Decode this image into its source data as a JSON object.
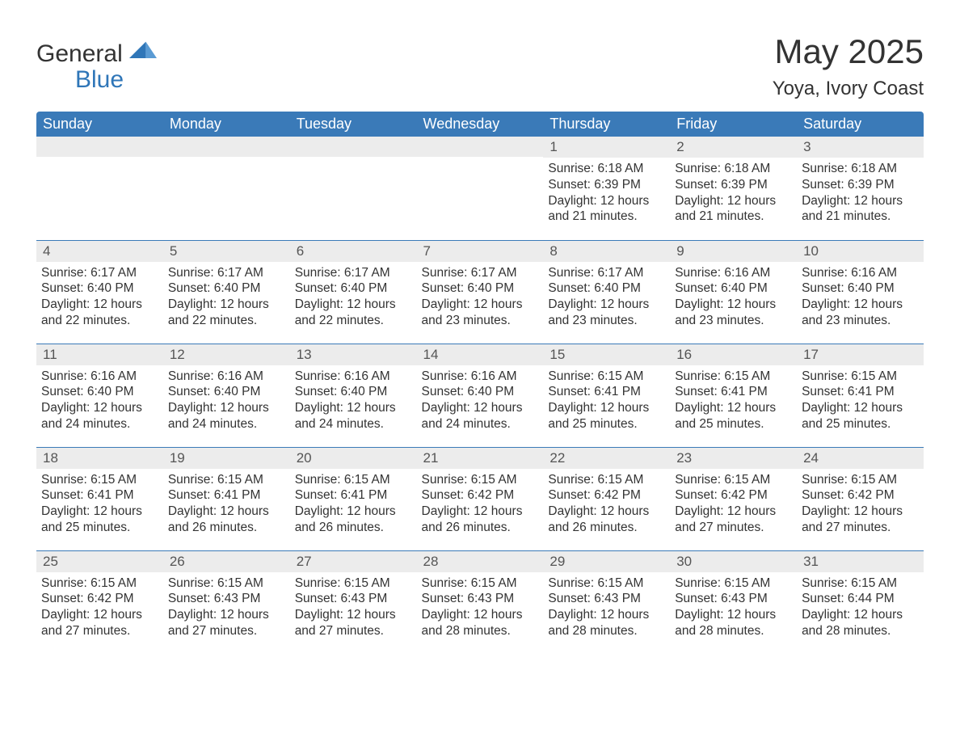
{
  "logo": {
    "word1": "General",
    "word2": "Blue",
    "triangle_color": "#2f76b8"
  },
  "title": "May 2025",
  "location": "Yoya, Ivory Coast",
  "colors": {
    "header_bg": "#3a7ab8",
    "header_text": "#ffffff",
    "daynum_bg": "#ececec",
    "row_divider": "#3a7ab8",
    "body_text": "#333333"
  },
  "weekdays": [
    "Sunday",
    "Monday",
    "Tuesday",
    "Wednesday",
    "Thursday",
    "Friday",
    "Saturday"
  ],
  "labels": {
    "sunrise": "Sunrise:",
    "sunset": "Sunset:",
    "daylight_prefix": "Daylight:"
  },
  "weeks": [
    [
      null,
      null,
      null,
      null,
      {
        "d": "1",
        "sr": "6:18 AM",
        "ss": "6:39 PM",
        "dl": "12 hours and 21 minutes."
      },
      {
        "d": "2",
        "sr": "6:18 AM",
        "ss": "6:39 PM",
        "dl": "12 hours and 21 minutes."
      },
      {
        "d": "3",
        "sr": "6:18 AM",
        "ss": "6:39 PM",
        "dl": "12 hours and 21 minutes."
      }
    ],
    [
      {
        "d": "4",
        "sr": "6:17 AM",
        "ss": "6:40 PM",
        "dl": "12 hours and 22 minutes."
      },
      {
        "d": "5",
        "sr": "6:17 AM",
        "ss": "6:40 PM",
        "dl": "12 hours and 22 minutes."
      },
      {
        "d": "6",
        "sr": "6:17 AM",
        "ss": "6:40 PM",
        "dl": "12 hours and 22 minutes."
      },
      {
        "d": "7",
        "sr": "6:17 AM",
        "ss": "6:40 PM",
        "dl": "12 hours and 23 minutes."
      },
      {
        "d": "8",
        "sr": "6:17 AM",
        "ss": "6:40 PM",
        "dl": "12 hours and 23 minutes."
      },
      {
        "d": "9",
        "sr": "6:16 AM",
        "ss": "6:40 PM",
        "dl": "12 hours and 23 minutes."
      },
      {
        "d": "10",
        "sr": "6:16 AM",
        "ss": "6:40 PM",
        "dl": "12 hours and 23 minutes."
      }
    ],
    [
      {
        "d": "11",
        "sr": "6:16 AM",
        "ss": "6:40 PM",
        "dl": "12 hours and 24 minutes."
      },
      {
        "d": "12",
        "sr": "6:16 AM",
        "ss": "6:40 PM",
        "dl": "12 hours and 24 minutes."
      },
      {
        "d": "13",
        "sr": "6:16 AM",
        "ss": "6:40 PM",
        "dl": "12 hours and 24 minutes."
      },
      {
        "d": "14",
        "sr": "6:16 AM",
        "ss": "6:40 PM",
        "dl": "12 hours and 24 minutes."
      },
      {
        "d": "15",
        "sr": "6:15 AM",
        "ss": "6:41 PM",
        "dl": "12 hours and 25 minutes."
      },
      {
        "d": "16",
        "sr": "6:15 AM",
        "ss": "6:41 PM",
        "dl": "12 hours and 25 minutes."
      },
      {
        "d": "17",
        "sr": "6:15 AM",
        "ss": "6:41 PM",
        "dl": "12 hours and 25 minutes."
      }
    ],
    [
      {
        "d": "18",
        "sr": "6:15 AM",
        "ss": "6:41 PM",
        "dl": "12 hours and 25 minutes."
      },
      {
        "d": "19",
        "sr": "6:15 AM",
        "ss": "6:41 PM",
        "dl": "12 hours and 26 minutes."
      },
      {
        "d": "20",
        "sr": "6:15 AM",
        "ss": "6:41 PM",
        "dl": "12 hours and 26 minutes."
      },
      {
        "d": "21",
        "sr": "6:15 AM",
        "ss": "6:42 PM",
        "dl": "12 hours and 26 minutes."
      },
      {
        "d": "22",
        "sr": "6:15 AM",
        "ss": "6:42 PM",
        "dl": "12 hours and 26 minutes."
      },
      {
        "d": "23",
        "sr": "6:15 AM",
        "ss": "6:42 PM",
        "dl": "12 hours and 27 minutes."
      },
      {
        "d": "24",
        "sr": "6:15 AM",
        "ss": "6:42 PM",
        "dl": "12 hours and 27 minutes."
      }
    ],
    [
      {
        "d": "25",
        "sr": "6:15 AM",
        "ss": "6:42 PM",
        "dl": "12 hours and 27 minutes."
      },
      {
        "d": "26",
        "sr": "6:15 AM",
        "ss": "6:43 PM",
        "dl": "12 hours and 27 minutes."
      },
      {
        "d": "27",
        "sr": "6:15 AM",
        "ss": "6:43 PM",
        "dl": "12 hours and 27 minutes."
      },
      {
        "d": "28",
        "sr": "6:15 AM",
        "ss": "6:43 PM",
        "dl": "12 hours and 28 minutes."
      },
      {
        "d": "29",
        "sr": "6:15 AM",
        "ss": "6:43 PM",
        "dl": "12 hours and 28 minutes."
      },
      {
        "d": "30",
        "sr": "6:15 AM",
        "ss": "6:43 PM",
        "dl": "12 hours and 28 minutes."
      },
      {
        "d": "31",
        "sr": "6:15 AM",
        "ss": "6:44 PM",
        "dl": "12 hours and 28 minutes."
      }
    ]
  ]
}
